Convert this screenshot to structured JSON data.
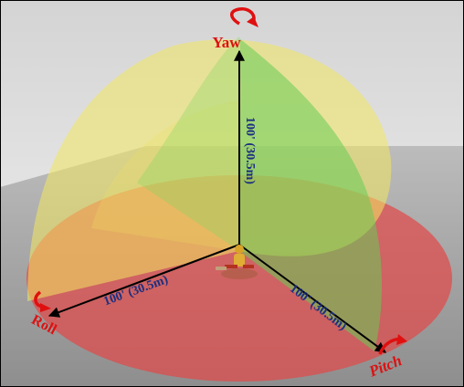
{
  "axes": {
    "yaw": {
      "label": "Yaw",
      "distance_label": "100' (30.5m)"
    },
    "roll": {
      "label": "Roll",
      "distance_label": "100' (30.5m)"
    },
    "pitch": {
      "label": "Pitch",
      "distance_label": "100' (30.5m)"
    }
  },
  "colors": {
    "axis_label": "#dd1111",
    "distance_label": "#1c2f80",
    "rotation_arrow": "#e01010",
    "disc": "#e04a4a",
    "yellow_lobe": "#f2e860",
    "green_lobe": "#66cc55",
    "axis_line": "#000000",
    "frame": "#000000"
  },
  "icons": {
    "yaw_rotation": "curved-rotation-arrow-icon",
    "roll_rotation": "curved-rotation-arrow-icon",
    "pitch_rotation": "curved-rotation-arrow-icon",
    "figure": "drone-operator-figure-icon"
  }
}
